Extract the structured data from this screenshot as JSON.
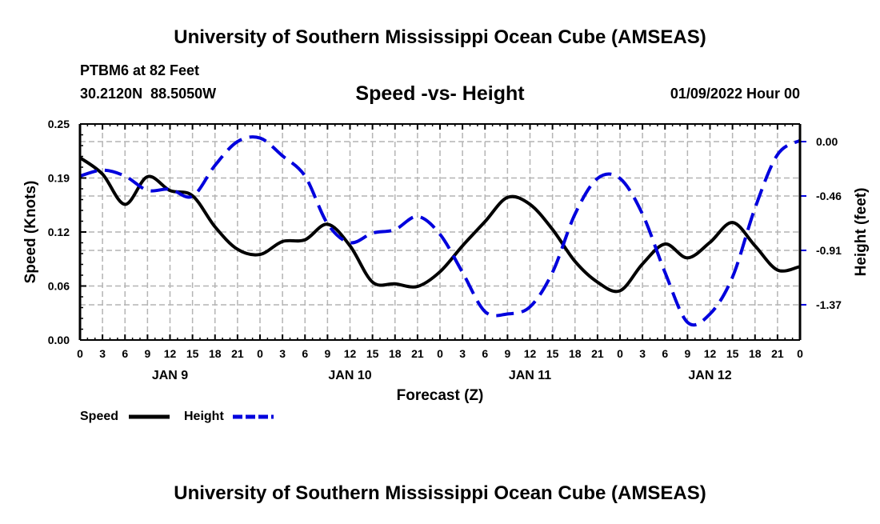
{
  "header": {
    "title": "University of Southern Mississippi Ocean Cube (AMSEAS)",
    "station": "PTBM6 at 82 Feet",
    "coords": "30.2120N  88.5050W",
    "datetime": "01/09/2022 Hour 00"
  },
  "footer": {
    "title": "University of Southern Mississippi Ocean Cube (AMSEAS)"
  },
  "chart_data": {
    "type": "line",
    "title": "Speed -vs- Height",
    "xlabel": "Forecast (Z)",
    "ylabel": "Speed (Knots)",
    "y2label": "Height (feet)",
    "x_hours": [
      0,
      3,
      6,
      9,
      12,
      15,
      18,
      21,
      24,
      27,
      30,
      33,
      36,
      39,
      42,
      45,
      48,
      51,
      54,
      57,
      60,
      63,
      66,
      69,
      72,
      75,
      78,
      81,
      84,
      87,
      90,
      93,
      96
    ],
    "x_tick_labels": [
      "0",
      "3",
      "6",
      "9",
      "12",
      "15",
      "18",
      "21",
      "0",
      "3",
      "6",
      "9",
      "12",
      "15",
      "18",
      "21",
      "0",
      "3",
      "6",
      "9",
      "12",
      "15",
      "18",
      "21",
      "0",
      "3",
      "6",
      "9",
      "12",
      "15",
      "18",
      "21",
      "0"
    ],
    "day_labels": [
      {
        "label": "JAN 9",
        "hour": 12
      },
      {
        "label": "JAN 10",
        "hour": 36
      },
      {
        "label": "JAN 11",
        "hour": 60
      },
      {
        "label": "JAN 12",
        "hour": 84
      }
    ],
    "xlim": [
      0,
      96
    ],
    "ylim": [
      0,
      0.25
    ],
    "y_ticks": [
      {
        "v": 0,
        "label": "0.00"
      },
      {
        "v": 0.0625,
        "label": "0.06"
      },
      {
        "v": 0.125,
        "label": "0.12"
      },
      {
        "v": 0.1875,
        "label": "0.19"
      },
      {
        "v": 0.25,
        "label": "0.25"
      }
    ],
    "y2lim": [
      -1.669,
      0.148
    ],
    "y2_ticks": [
      {
        "v": 0,
        "label": "0.00"
      },
      {
        "v": -0.4575,
        "label": "-0.46"
      },
      {
        "v": -0.915,
        "label": "-0.91"
      },
      {
        "v": -1.3725,
        "label": "-1.37"
      }
    ],
    "grid": true,
    "legend_position": "bottom-left",
    "series": [
      {
        "name": "Speed",
        "axis": "left",
        "color": "#000000",
        "style": "solid",
        "values": [
          0.211,
          0.192,
          0.157,
          0.189,
          0.173,
          0.167,
          0.131,
          0.105,
          0.099,
          0.114,
          0.116,
          0.134,
          0.109,
          0.067,
          0.065,
          0.062,
          0.079,
          0.109,
          0.137,
          0.165,
          0.157,
          0.128,
          0.091,
          0.067,
          0.057,
          0.088,
          0.111,
          0.095,
          0.113,
          0.136,
          0.109,
          0.081,
          0.085
        ]
      },
      {
        "name": "Height",
        "axis": "right",
        "color": "#0000dd",
        "style": "dashed",
        "values": [
          -0.29,
          -0.24,
          -0.29,
          -0.41,
          -0.4,
          -0.46,
          -0.2,
          0.0,
          0.03,
          -0.12,
          -0.29,
          -0.69,
          -0.85,
          -0.77,
          -0.74,
          -0.63,
          -0.78,
          -1.1,
          -1.43,
          -1.45,
          -1.39,
          -1.1,
          -0.61,
          -0.31,
          -0.31,
          -0.61,
          -1.1,
          -1.52,
          -1.45,
          -1.14,
          -0.56,
          -0.11,
          0.01
        ]
      }
    ]
  }
}
